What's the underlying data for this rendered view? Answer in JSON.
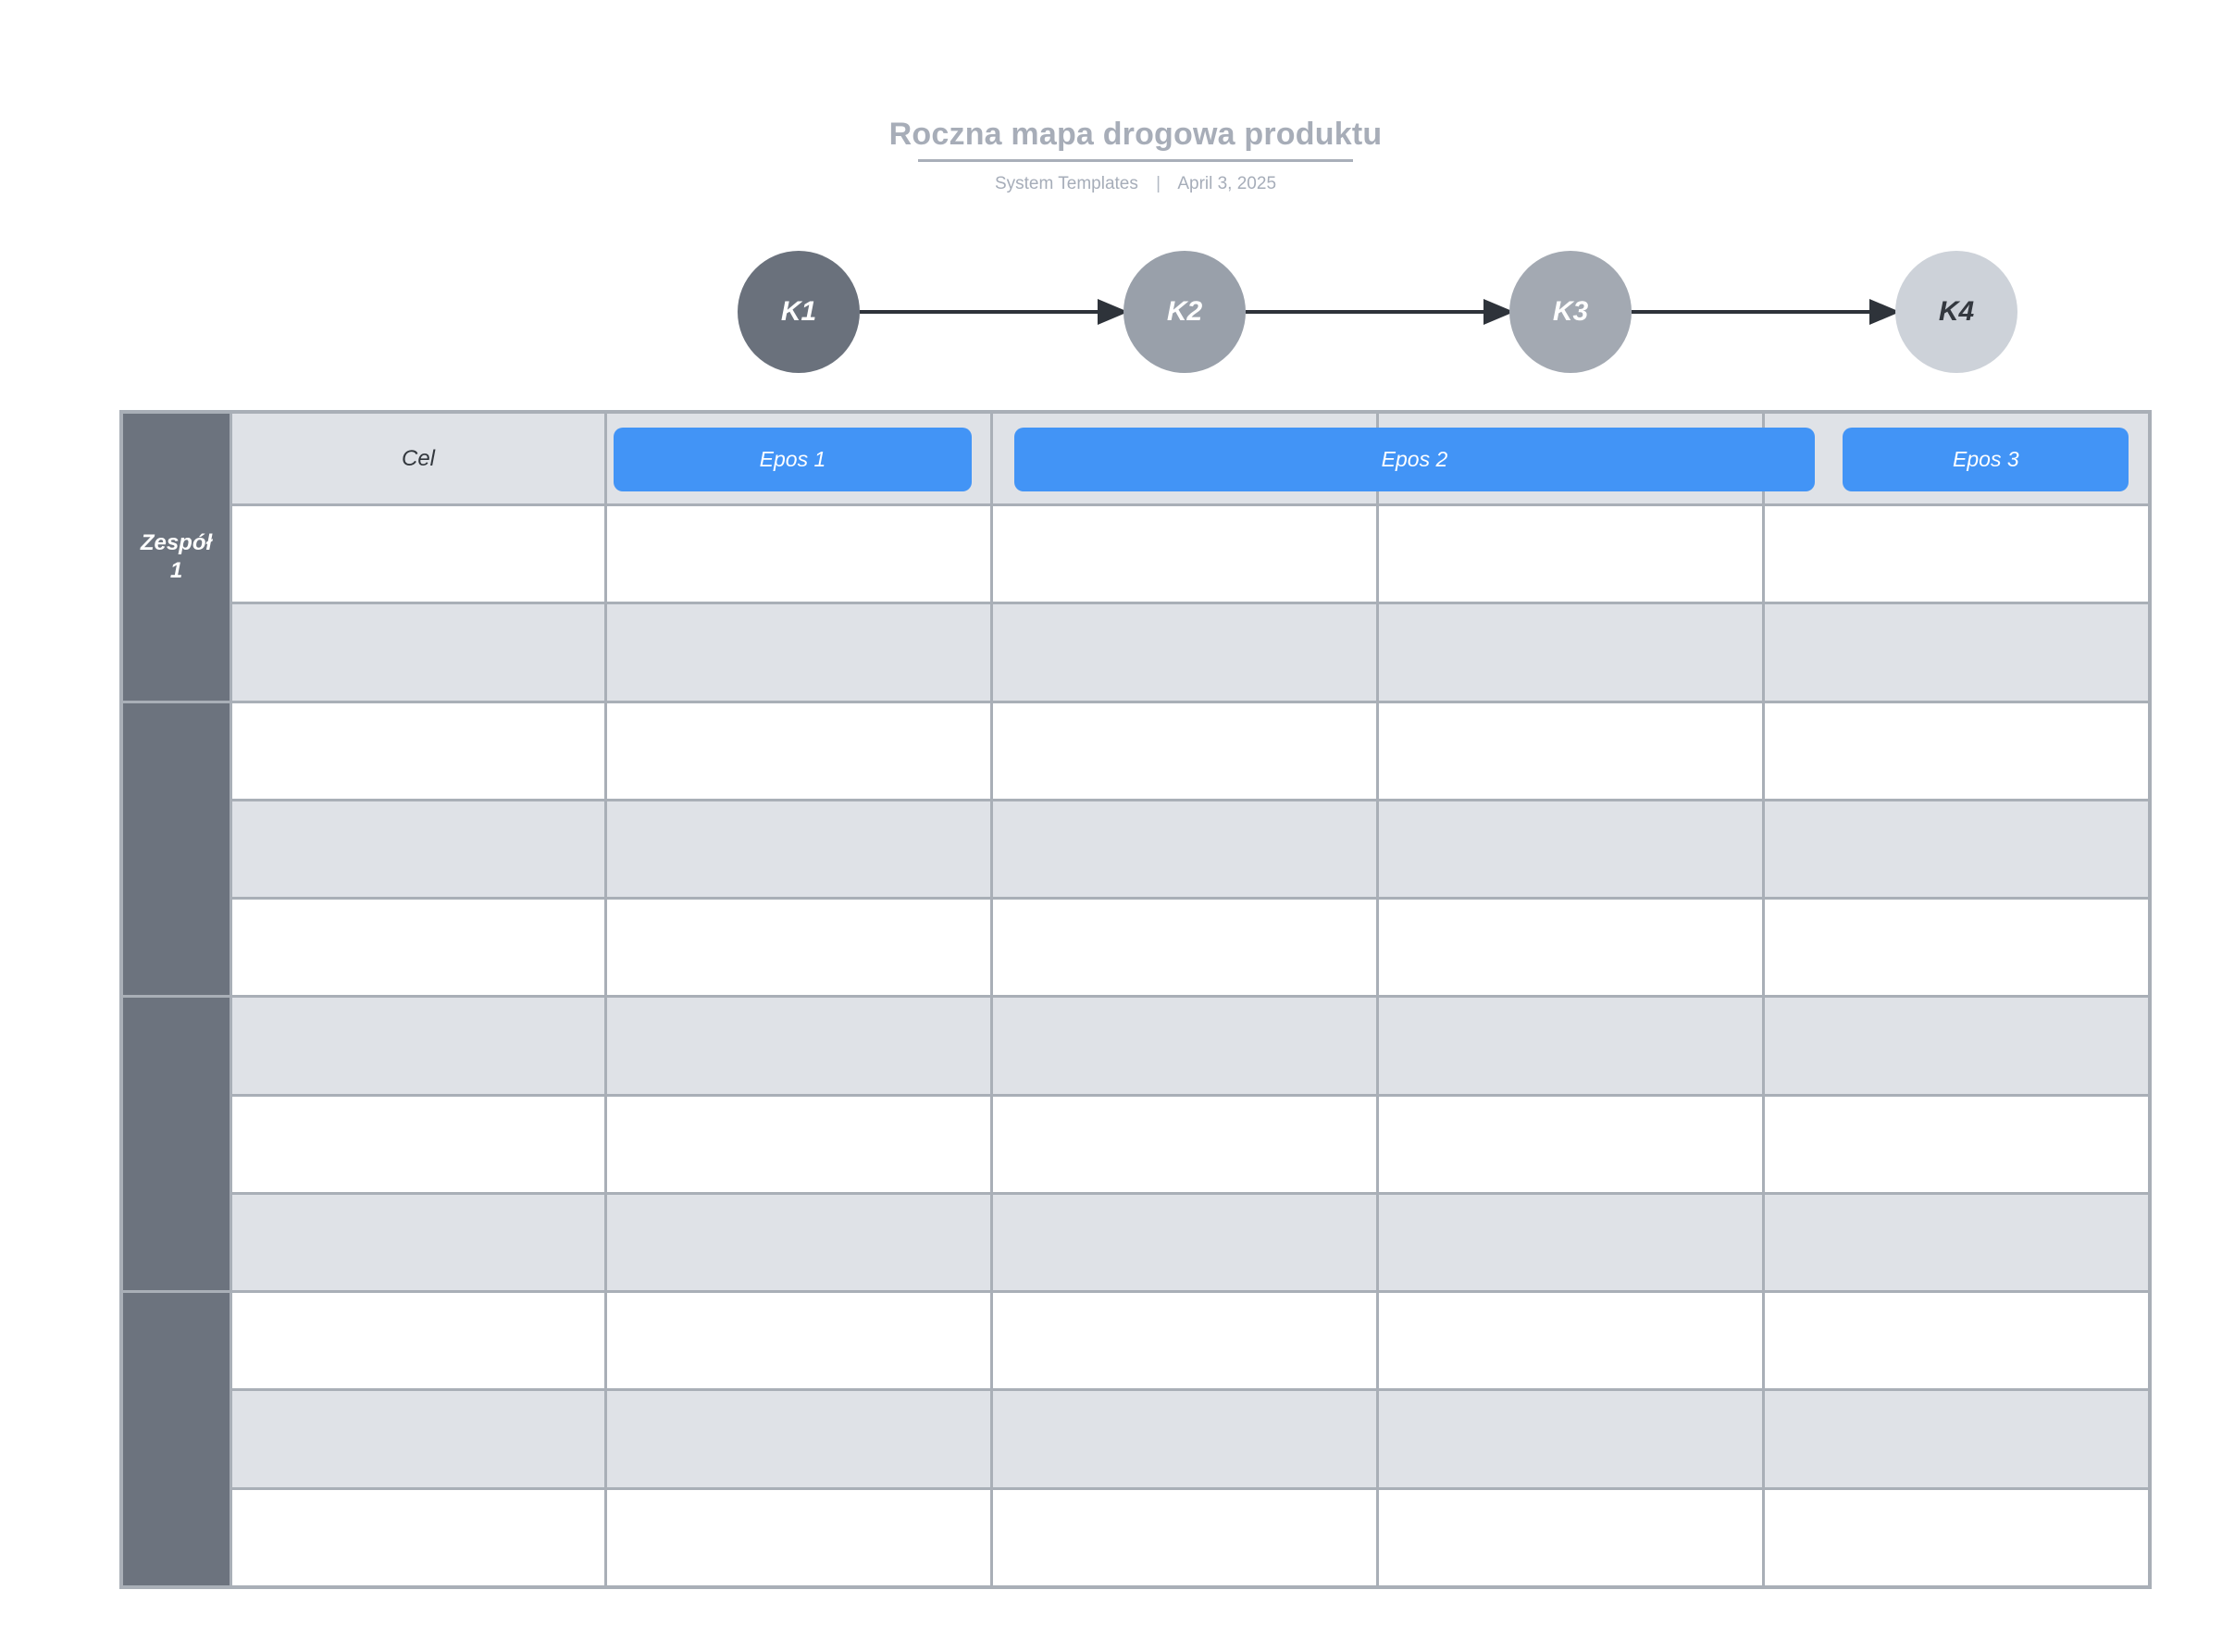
{
  "page": {
    "title": "Roczna mapa drogowa produktu",
    "subtitle": {
      "author": "System Templates",
      "separator": "|",
      "date": "April 3, 2025"
    }
  },
  "milestones": [
    {
      "label": "K1",
      "color": "#6A717C",
      "text_color": "#FFFFFF"
    },
    {
      "label": "K2",
      "color": "#99A0AA",
      "text_color": "#FFFFFF"
    },
    {
      "label": "K3",
      "color": "#A3A9B2",
      "text_color": "#FFFFFF"
    },
    {
      "label": "K4",
      "color": "#CDD2D9",
      "text_color": "#33383F"
    }
  ],
  "table": {
    "goal_header": "Cel",
    "epics": [
      {
        "label": "Epos 1"
      },
      {
        "label": "Epos 2"
      },
      {
        "label": "Epos 3"
      }
    ],
    "sections": [
      {
        "team_label": "Zespół 1",
        "rows": 2
      },
      {
        "team_label": "",
        "rows": 3
      },
      {
        "team_label": "",
        "rows": 3
      },
      {
        "team_label": "",
        "rows": 3
      }
    ]
  },
  "colors": {
    "accent_blue": "#4294F6",
    "team_column_gray": "#6C737E",
    "row_stripe_gray": "#DFE2E7",
    "grid_border_gray": "#A9AFB7",
    "arrow_dark": "#2E333A",
    "title_gray": "#A7ADB8"
  }
}
